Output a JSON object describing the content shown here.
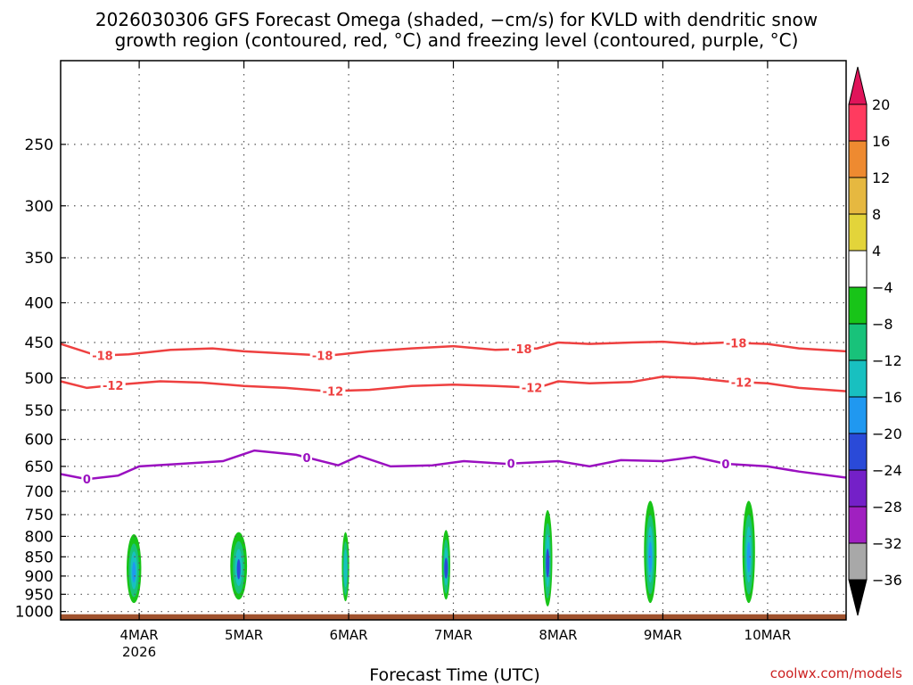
{
  "title": {
    "line1": "2026030306 GFS Forecast Omega (shaded, −cm/s) for KVLD with dendritic snow",
    "line2": "growth region (contoured, red, °C) and freezing level (contoured, purple, °C)"
  },
  "xlabel": "Forecast Time (UTC)",
  "credit": "coolwx.com/models",
  "chart_data": {
    "type": "heatmap",
    "x_ticks": [
      {
        "day": 4,
        "label": "4MAR",
        "sublabel": "2026"
      },
      {
        "day": 5,
        "label": "5MAR"
      },
      {
        "day": 6,
        "label": "6MAR"
      },
      {
        "day": 7,
        "label": "7MAR"
      },
      {
        "day": 8,
        "label": "8MAR"
      },
      {
        "day": 9,
        "label": "9MAR"
      },
      {
        "day": 10,
        "label": "10MAR"
      }
    ],
    "x_range_days": [
      3.25,
      10.75
    ],
    "y_axis": "pressure (hPa), log scale, inverted",
    "y_range": [
      1025,
      195
    ],
    "y_ticks": [
      250,
      300,
      350,
      400,
      450,
      500,
      550,
      600,
      650,
      700,
      750,
      800,
      850,
      900,
      950,
      1000
    ],
    "grid": true,
    "colorbar": {
      "labels": [
        "20",
        "16",
        "12",
        "8",
        "4",
        "−4",
        "−8",
        "−12",
        "−16",
        "−20",
        "−24",
        "−28",
        "−32",
        "−36"
      ],
      "colors": [
        "#ff3b5f",
        "#ee8a30",
        "#e6b840",
        "#e3d43a",
        "#ffffff",
        "#18c418",
        "#18c27a",
        "#18c0c0",
        "#2098f0",
        "#2a4ad8",
        "#7420c8",
        "#a020c0",
        "#a8a8a8"
      ],
      "top_arrow_color": "#e0145a",
      "bottom_arrow_color": "#000000"
    },
    "contours": [
      {
        "label": "-18",
        "color": "#ee4040",
        "points": [
          [
            3.25,
            452
          ],
          [
            3.6,
            468
          ],
          [
            3.9,
            466
          ],
          [
            4.3,
            460
          ],
          [
            4.7,
            458
          ],
          [
            5.0,
            462
          ],
          [
            5.4,
            465
          ],
          [
            5.8,
            468
          ],
          [
            6.2,
            462
          ],
          [
            6.6,
            458
          ],
          [
            7.0,
            455
          ],
          [
            7.4,
            460
          ],
          [
            7.8,
            458
          ],
          [
            8.0,
            450
          ],
          [
            8.3,
            452
          ],
          [
            8.7,
            450
          ],
          [
            9.0,
            449
          ],
          [
            9.3,
            452
          ],
          [
            9.6,
            450
          ],
          [
            10.0,
            452
          ],
          [
            10.3,
            458
          ],
          [
            10.75,
            462
          ]
        ],
        "label_days": [
          3.65,
          5.75,
          7.65,
          9.7
        ]
      },
      {
        "label": "-12",
        "color": "#ee4040",
        "points": [
          [
            3.25,
            505
          ],
          [
            3.5,
            515
          ],
          [
            3.8,
            510
          ],
          [
            4.2,
            505
          ],
          [
            4.6,
            507
          ],
          [
            5.0,
            512
          ],
          [
            5.4,
            515
          ],
          [
            5.8,
            520
          ],
          [
            6.2,
            518
          ],
          [
            6.6,
            512
          ],
          [
            7.0,
            510
          ],
          [
            7.4,
            512
          ],
          [
            7.8,
            515
          ],
          [
            8.0,
            505
          ],
          [
            8.3,
            508
          ],
          [
            8.7,
            506
          ],
          [
            9.0,
            498
          ],
          [
            9.3,
            500
          ],
          [
            9.6,
            505
          ],
          [
            10.0,
            508
          ],
          [
            10.3,
            515
          ],
          [
            10.75,
            520
          ]
        ],
        "label_days": [
          3.75,
          5.85,
          7.75,
          9.75
        ]
      },
      {
        "label": "0",
        "color": "#9a10c0",
        "points": [
          [
            3.25,
            665
          ],
          [
            3.5,
            675
          ],
          [
            3.8,
            668
          ],
          [
            4.0,
            650
          ],
          [
            4.4,
            645
          ],
          [
            4.8,
            640
          ],
          [
            5.1,
            620
          ],
          [
            5.5,
            628
          ],
          [
            5.9,
            648
          ],
          [
            6.1,
            630
          ],
          [
            6.4,
            650
          ],
          [
            6.8,
            648
          ],
          [
            7.1,
            640
          ],
          [
            7.5,
            645
          ],
          [
            7.8,
            642
          ],
          [
            8.0,
            640
          ],
          [
            8.3,
            650
          ],
          [
            8.6,
            638
          ],
          [
            9.0,
            640
          ],
          [
            9.3,
            632
          ],
          [
            9.6,
            645
          ],
          [
            10.0,
            650
          ],
          [
            10.3,
            660
          ],
          [
            10.75,
            672
          ]
        ],
        "label_days": [
          3.5,
          5.6,
          7.55,
          9.6
        ]
      }
    ],
    "omega_cells": [
      {
        "day": 3.95,
        "p_top": 795,
        "p_bot": 975,
        "width": 0.14,
        "core": "#2098f0"
      },
      {
        "day": 4.95,
        "p_top": 790,
        "p_bot": 965,
        "width": 0.16,
        "core": "#2a4ad8"
      },
      {
        "day": 5.97,
        "p_top": 790,
        "p_bot": 970,
        "width": 0.07,
        "core": "#18c0c0"
      },
      {
        "day": 6.93,
        "p_top": 785,
        "p_bot": 965,
        "width": 0.08,
        "core": "#2a4ad8"
      },
      {
        "day": 7.9,
        "p_top": 740,
        "p_bot": 985,
        "width": 0.09,
        "core": "#2a4ad8"
      },
      {
        "day": 8.88,
        "p_top": 720,
        "p_bot": 975,
        "width": 0.12,
        "core": "#2098f0"
      },
      {
        "day": 9.82,
        "p_top": 720,
        "p_bot": 975,
        "width": 0.12,
        "core": "#2098f0"
      }
    ]
  }
}
